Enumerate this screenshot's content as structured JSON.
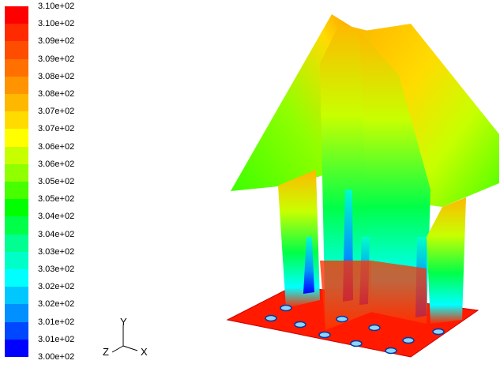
{
  "legend": {
    "labels": [
      "3.10e+02",
      "3.10e+02",
      "3.09e+02",
      "3.09e+02",
      "3.08e+02",
      "3.08e+02",
      "3.07e+02",
      "3.07e+02",
      "3.06e+02",
      "3.06e+02",
      "3.05e+02",
      "3.05e+02",
      "3.04e+02",
      "3.04e+02",
      "3.03e+02",
      "3.03e+02",
      "3.02e+02",
      "3.02e+02",
      "3.01e+02",
      "3.01e+02",
      "3.00e+02"
    ],
    "colors": [
      "#ff0000",
      "#ff2a00",
      "#ff4d00",
      "#ff7000",
      "#ff9400",
      "#ffb800",
      "#ffdb00",
      "#ffff00",
      "#c8ff00",
      "#90ff00",
      "#48ff00",
      "#00ff00",
      "#00ff48",
      "#00ff90",
      "#00ffc8",
      "#00ffff",
      "#00c8ff",
      "#0090ff",
      "#0048ff",
      "#0000ff"
    ]
  },
  "axes": {
    "y": "Y",
    "z": "Z",
    "x": "X"
  }
}
